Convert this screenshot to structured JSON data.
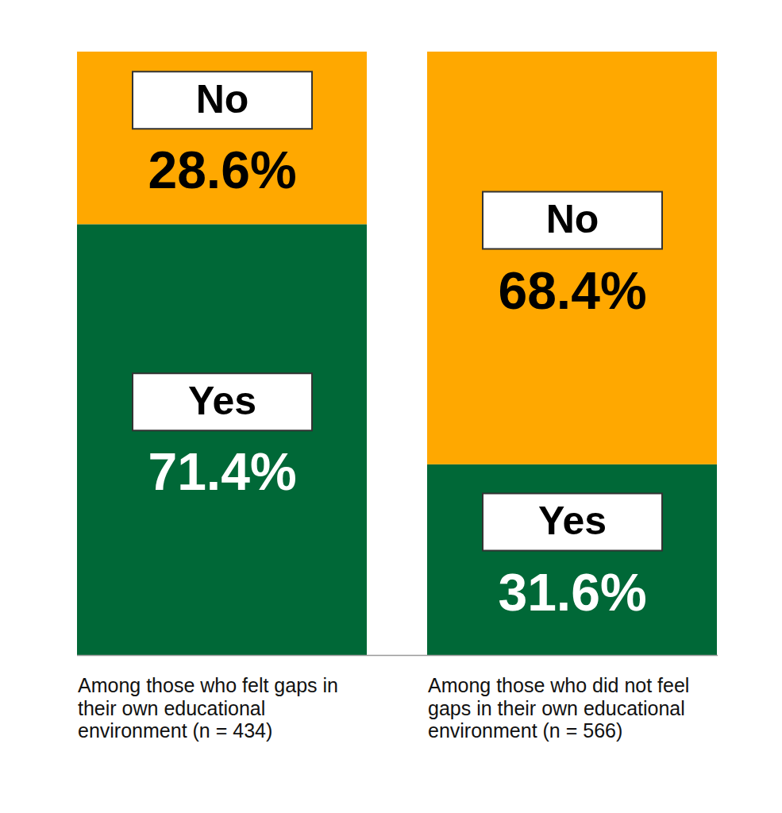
{
  "chart_data": {
    "type": "bar",
    "stacked": true,
    "categories": [
      "Among those who felt gaps in their own educational environment (n = 434)",
      "Among those who did not feel gaps in their own educational environment (n = 566)"
    ],
    "series": [
      {
        "name": "Yes",
        "color": "#006837",
        "values": [
          71.4,
          31.6
        ],
        "value_labels": [
          "71.4%",
          "31.6%"
        ]
      },
      {
        "name": "No",
        "color": "#FFA800",
        "values": [
          28.6,
          68.4
        ],
        "value_labels": [
          "28.6%",
          "68.4%"
        ]
      }
    ],
    "ylim": [
      0,
      100
    ],
    "data_labels": true,
    "tick_labels": false
  }
}
